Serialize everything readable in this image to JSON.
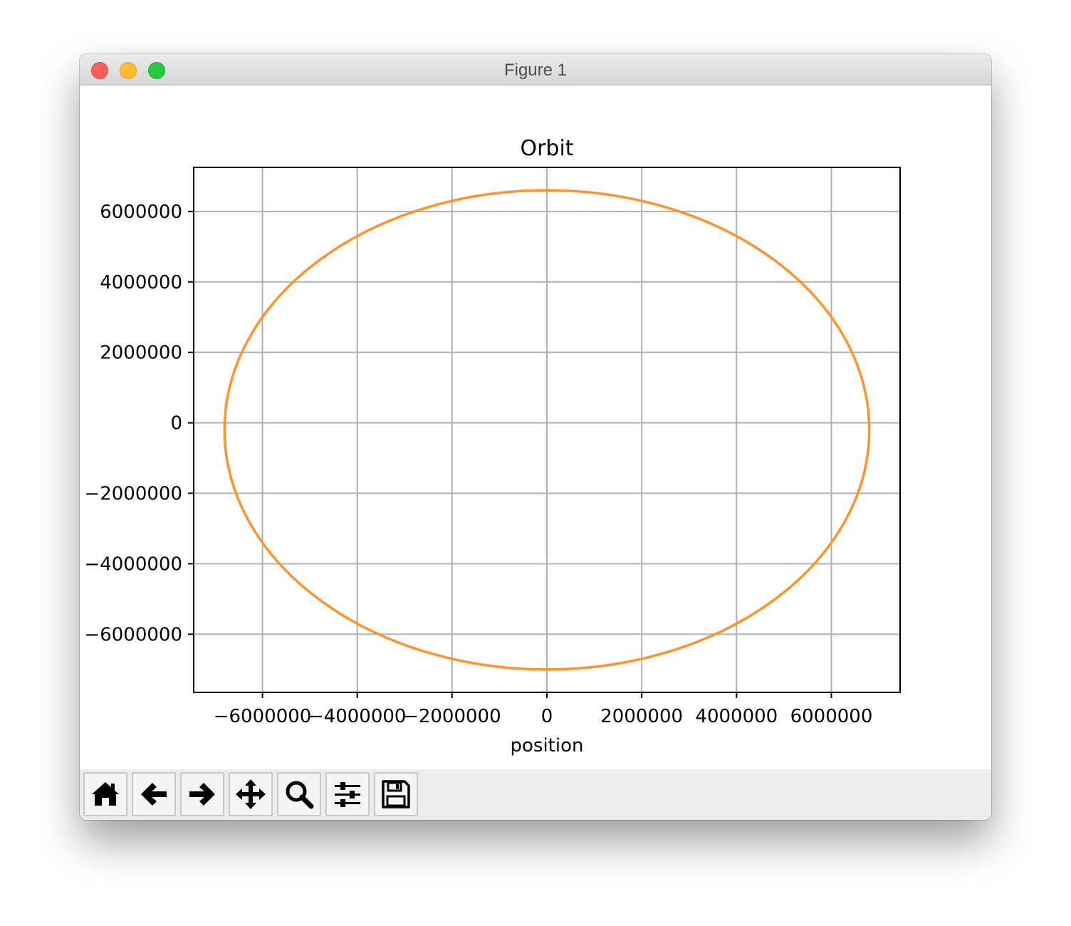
{
  "window": {
    "title": "Figure 1"
  },
  "chart_data": {
    "type": "line",
    "title": "Orbit",
    "xlabel": "position",
    "ylabel": "",
    "xlim": [
      -7450000,
      7450000
    ],
    "ylim": [
      -7650000,
      7250000
    ],
    "xticks": [
      {
        "value": -6000000,
        "label": "−6000000"
      },
      {
        "value": -4000000,
        "label": "−4000000"
      },
      {
        "value": -2000000,
        "label": "−2000000"
      },
      {
        "value": 0,
        "label": "0"
      },
      {
        "value": 2000000,
        "label": "2000000"
      },
      {
        "value": 4000000,
        "label": "4000000"
      },
      {
        "value": 6000000,
        "label": "6000000"
      }
    ],
    "yticks": [
      {
        "value": 6000000,
        "label": "6000000"
      },
      {
        "value": 4000000,
        "label": "4000000"
      },
      {
        "value": 2000000,
        "label": "2000000"
      },
      {
        "value": 0,
        "label": "0"
      },
      {
        "value": -2000000,
        "label": "−2000000"
      },
      {
        "value": -4000000,
        "label": "−4000000"
      },
      {
        "value": -6000000,
        "label": "−6000000"
      }
    ],
    "grid": true,
    "series": [
      {
        "color": "#ff922b",
        "shape": "ellipse",
        "center": [
          0,
          -200000
        ],
        "semi_axes": [
          6800000,
          6800000
        ],
        "points": [
          [
            6800000,
            -200000
          ],
          [
            6400000,
            2100000
          ],
          [
            5000000,
            4400000
          ],
          [
            0,
            6600000
          ],
          [
            -5000000,
            4400000
          ],
          [
            -6400000,
            2100000
          ],
          [
            -6800000,
            -200000
          ],
          [
            -6400000,
            -2500000
          ],
          [
            -5000000,
            -4800000
          ],
          [
            0,
            -7000000
          ],
          [
            5000000,
            -4800000
          ],
          [
            6400000,
            -2500000
          ],
          [
            6800000,
            -200000
          ]
        ]
      }
    ]
  },
  "toolbar": {
    "buttons": [
      {
        "name": "home-button",
        "icon": "home-icon"
      },
      {
        "name": "back-button",
        "icon": "arrow-left-icon"
      },
      {
        "name": "forward-button",
        "icon": "arrow-right-icon"
      },
      {
        "name": "pan-button",
        "icon": "move-icon"
      },
      {
        "name": "zoom-button",
        "icon": "search-icon"
      },
      {
        "name": "configure-subplots-button",
        "icon": "sliders-icon"
      },
      {
        "name": "save-button",
        "icon": "floppy-disk-icon"
      }
    ]
  }
}
